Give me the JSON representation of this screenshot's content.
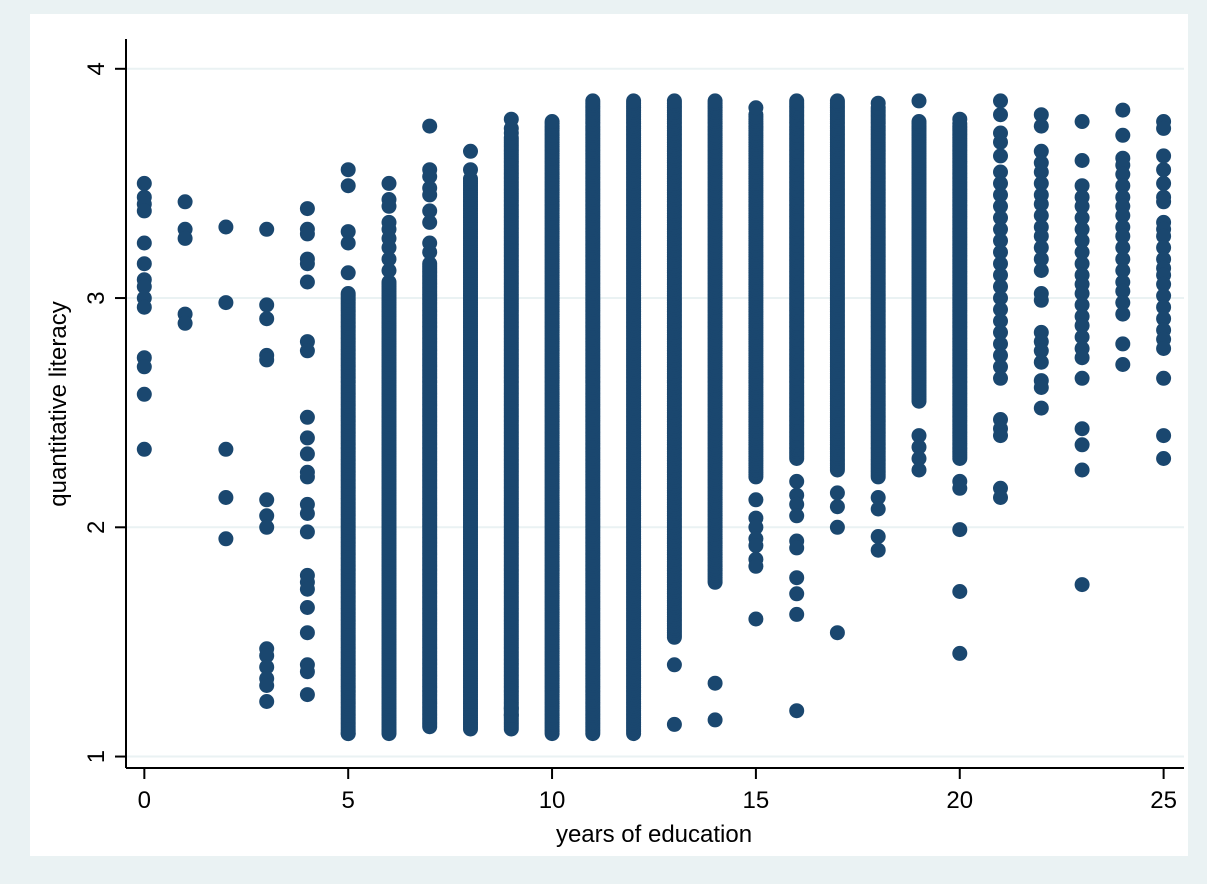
{
  "colors": {
    "outer_background": "#eaf2f3",
    "plot_background": "#ffffff",
    "gridline": "#eaf2f3",
    "marker": "#1a476f",
    "axis": "#000000"
  },
  "chart_data": {
    "type": "scatter",
    "title": "",
    "xlabel": "years of education",
    "ylabel": "quantitative literacy",
    "xlim": [
      -0.45,
      25.5
    ],
    "ylim": [
      0.95,
      4.13
    ],
    "xticks": [
      0,
      5,
      10,
      15,
      20,
      25
    ],
    "yticks": [
      1,
      2,
      3,
      4
    ],
    "grid": {
      "horizontal": true,
      "vertical": false
    },
    "legend": "none",
    "marker": {
      "shape": "circle",
      "color": "#1a476f"
    },
    "points": [
      {
        "x": 0,
        "ys": [
          3.5,
          3.44,
          3.41,
          3.38,
          3.24,
          3.15,
          3.08,
          3.05,
          3.0,
          2.96,
          2.74,
          2.7,
          2.58,
          2.34
        ]
      },
      {
        "x": 1,
        "ys": [
          3.42,
          3.3,
          3.26,
          2.93,
          2.89
        ]
      },
      {
        "x": 2,
        "ys": [
          3.31,
          2.98,
          2.34,
          2.13,
          1.95
        ]
      },
      {
        "x": 3,
        "ys": [
          3.3,
          2.97,
          2.91,
          2.75,
          2.73,
          2.12,
          2.05,
          2.0,
          1.47,
          1.44,
          1.39,
          1.34,
          1.31,
          1.24
        ]
      },
      {
        "x": 4,
        "ys": [
          3.39,
          3.3,
          3.28,
          3.17,
          3.15,
          3.07,
          2.81,
          2.77,
          2.48,
          2.39,
          2.32,
          2.24,
          2.22,
          2.1,
          2.06,
          1.98,
          1.79,
          1.76,
          1.73,
          1.65,
          1.54,
          1.4,
          1.37,
          1.27
        ]
      },
      {
        "x": 5,
        "ys": [
          3.56,
          3.49,
          3.29,
          3.24,
          3.11
        ],
        "range": [
          1.1,
          3.02
        ],
        "extra": [
          1.1
        ]
      },
      {
        "x": 6,
        "ys": [
          3.5,
          3.43,
          3.4,
          3.33,
          3.3,
          3.26,
          3.22,
          3.17,
          3.12
        ],
        "range": [
          1.1,
          3.07
        ],
        "extra": [
          1.11
        ]
      },
      {
        "x": 7,
        "ys": [
          3.75,
          3.56,
          3.53,
          3.48,
          3.45,
          3.38,
          3.33,
          3.24,
          3.2
        ],
        "range": [
          1.13,
          3.15
        ]
      },
      {
        "x": 8,
        "ys": [
          3.64,
          3.56
        ],
        "range": [
          1.12,
          3.52
        ]
      },
      {
        "x": 9,
        "ys": [
          3.78,
          3.74,
          3.72
        ],
        "range": [
          1.12,
          3.7
        ],
        "extra": [
          1.18,
          1.21
        ]
      },
      {
        "x": 10,
        "range": [
          1.1,
          3.77
        ]
      },
      {
        "x": 11,
        "ys": [
          3.86
        ],
        "range": [
          1.1,
          3.85
        ]
      },
      {
        "x": 12,
        "ys": [
          3.86
        ],
        "range": [
          1.1,
          3.85
        ]
      },
      {
        "x": 13,
        "ys": [
          3.86,
          1.4,
          1.14
        ],
        "range": [
          1.52,
          3.85
        ]
      },
      {
        "x": 14,
        "ys": [
          3.86,
          1.32,
          1.16
        ],
        "range": [
          1.76,
          3.85
        ]
      },
      {
        "x": 15,
        "ys": [
          3.83,
          2.12,
          2.04,
          2.0,
          1.95,
          1.92,
          1.86,
          1.83,
          1.6
        ],
        "range": [
          2.22,
          3.8
        ]
      },
      {
        "x": 16,
        "ys": [
          3.86,
          2.2,
          2.14,
          2.1,
          2.05,
          1.94,
          1.91,
          1.78,
          1.71,
          1.62,
          1.2
        ],
        "range": [
          2.3,
          3.85
        ]
      },
      {
        "x": 17,
        "ys": [
          3.86,
          2.15,
          2.09,
          2.0,
          1.54
        ],
        "range": [
          2.25,
          3.85
        ]
      },
      {
        "x": 18,
        "ys": [
          3.85,
          2.13,
          2.08,
          1.96,
          1.9
        ],
        "range": [
          2.22,
          3.83
        ]
      },
      {
        "x": 19,
        "ys": [
          3.86,
          2.4,
          2.35,
          2.3,
          2.25
        ],
        "range": [
          2.55,
          3.77
        ]
      },
      {
        "x": 20,
        "ys": [
          3.78,
          2.2,
          2.17,
          1.99,
          1.72,
          1.45
        ],
        "range": [
          2.3,
          3.76
        ]
      },
      {
        "x": 21,
        "ys": [
          3.86,
          3.8,
          3.72,
          3.68,
          3.62,
          3.55,
          3.5,
          3.45,
          3.4,
          3.35,
          3.3,
          3.25,
          3.2,
          3.15,
          3.1,
          3.05,
          3.0,
          2.95,
          2.9,
          2.85,
          2.8,
          2.75,
          2.7,
          2.65,
          2.47,
          2.43,
          2.4,
          2.17,
          2.13
        ]
      },
      {
        "x": 22,
        "ys": [
          3.8,
          3.75,
          3.64,
          3.59,
          3.55,
          3.5,
          3.45,
          3.41,
          3.36,
          3.31,
          3.27,
          3.22,
          3.17,
          3.12,
          3.02,
          2.99,
          2.85,
          2.81,
          2.77,
          2.72,
          2.64,
          2.61,
          2.52
        ]
      },
      {
        "x": 23,
        "ys": [
          3.77,
          3.6,
          3.49,
          3.44,
          3.4,
          3.35,
          3.3,
          3.25,
          3.2,
          3.15,
          3.1,
          3.06,
          3.02,
          2.97,
          2.92,
          2.88,
          2.83,
          2.78,
          2.74,
          2.65,
          2.43,
          2.36,
          2.25,
          1.75
        ]
      },
      {
        "x": 24,
        "ys": [
          3.82,
          3.71,
          3.61,
          3.58,
          3.54,
          3.49,
          3.44,
          3.4,
          3.36,
          3.31,
          3.27,
          3.22,
          3.17,
          3.12,
          3.07,
          3.03,
          2.98,
          2.93,
          2.8,
          2.71
        ]
      },
      {
        "x": 25,
        "ys": [
          3.77,
          3.74,
          3.62,
          3.56,
          3.5,
          3.44,
          3.42,
          3.33,
          3.3,
          3.27,
          3.22,
          3.17,
          3.13,
          3.1,
          3.06,
          3.01,
          2.96,
          2.91,
          2.86,
          2.82,
          2.78,
          2.65,
          2.4,
          2.3
        ]
      }
    ]
  }
}
